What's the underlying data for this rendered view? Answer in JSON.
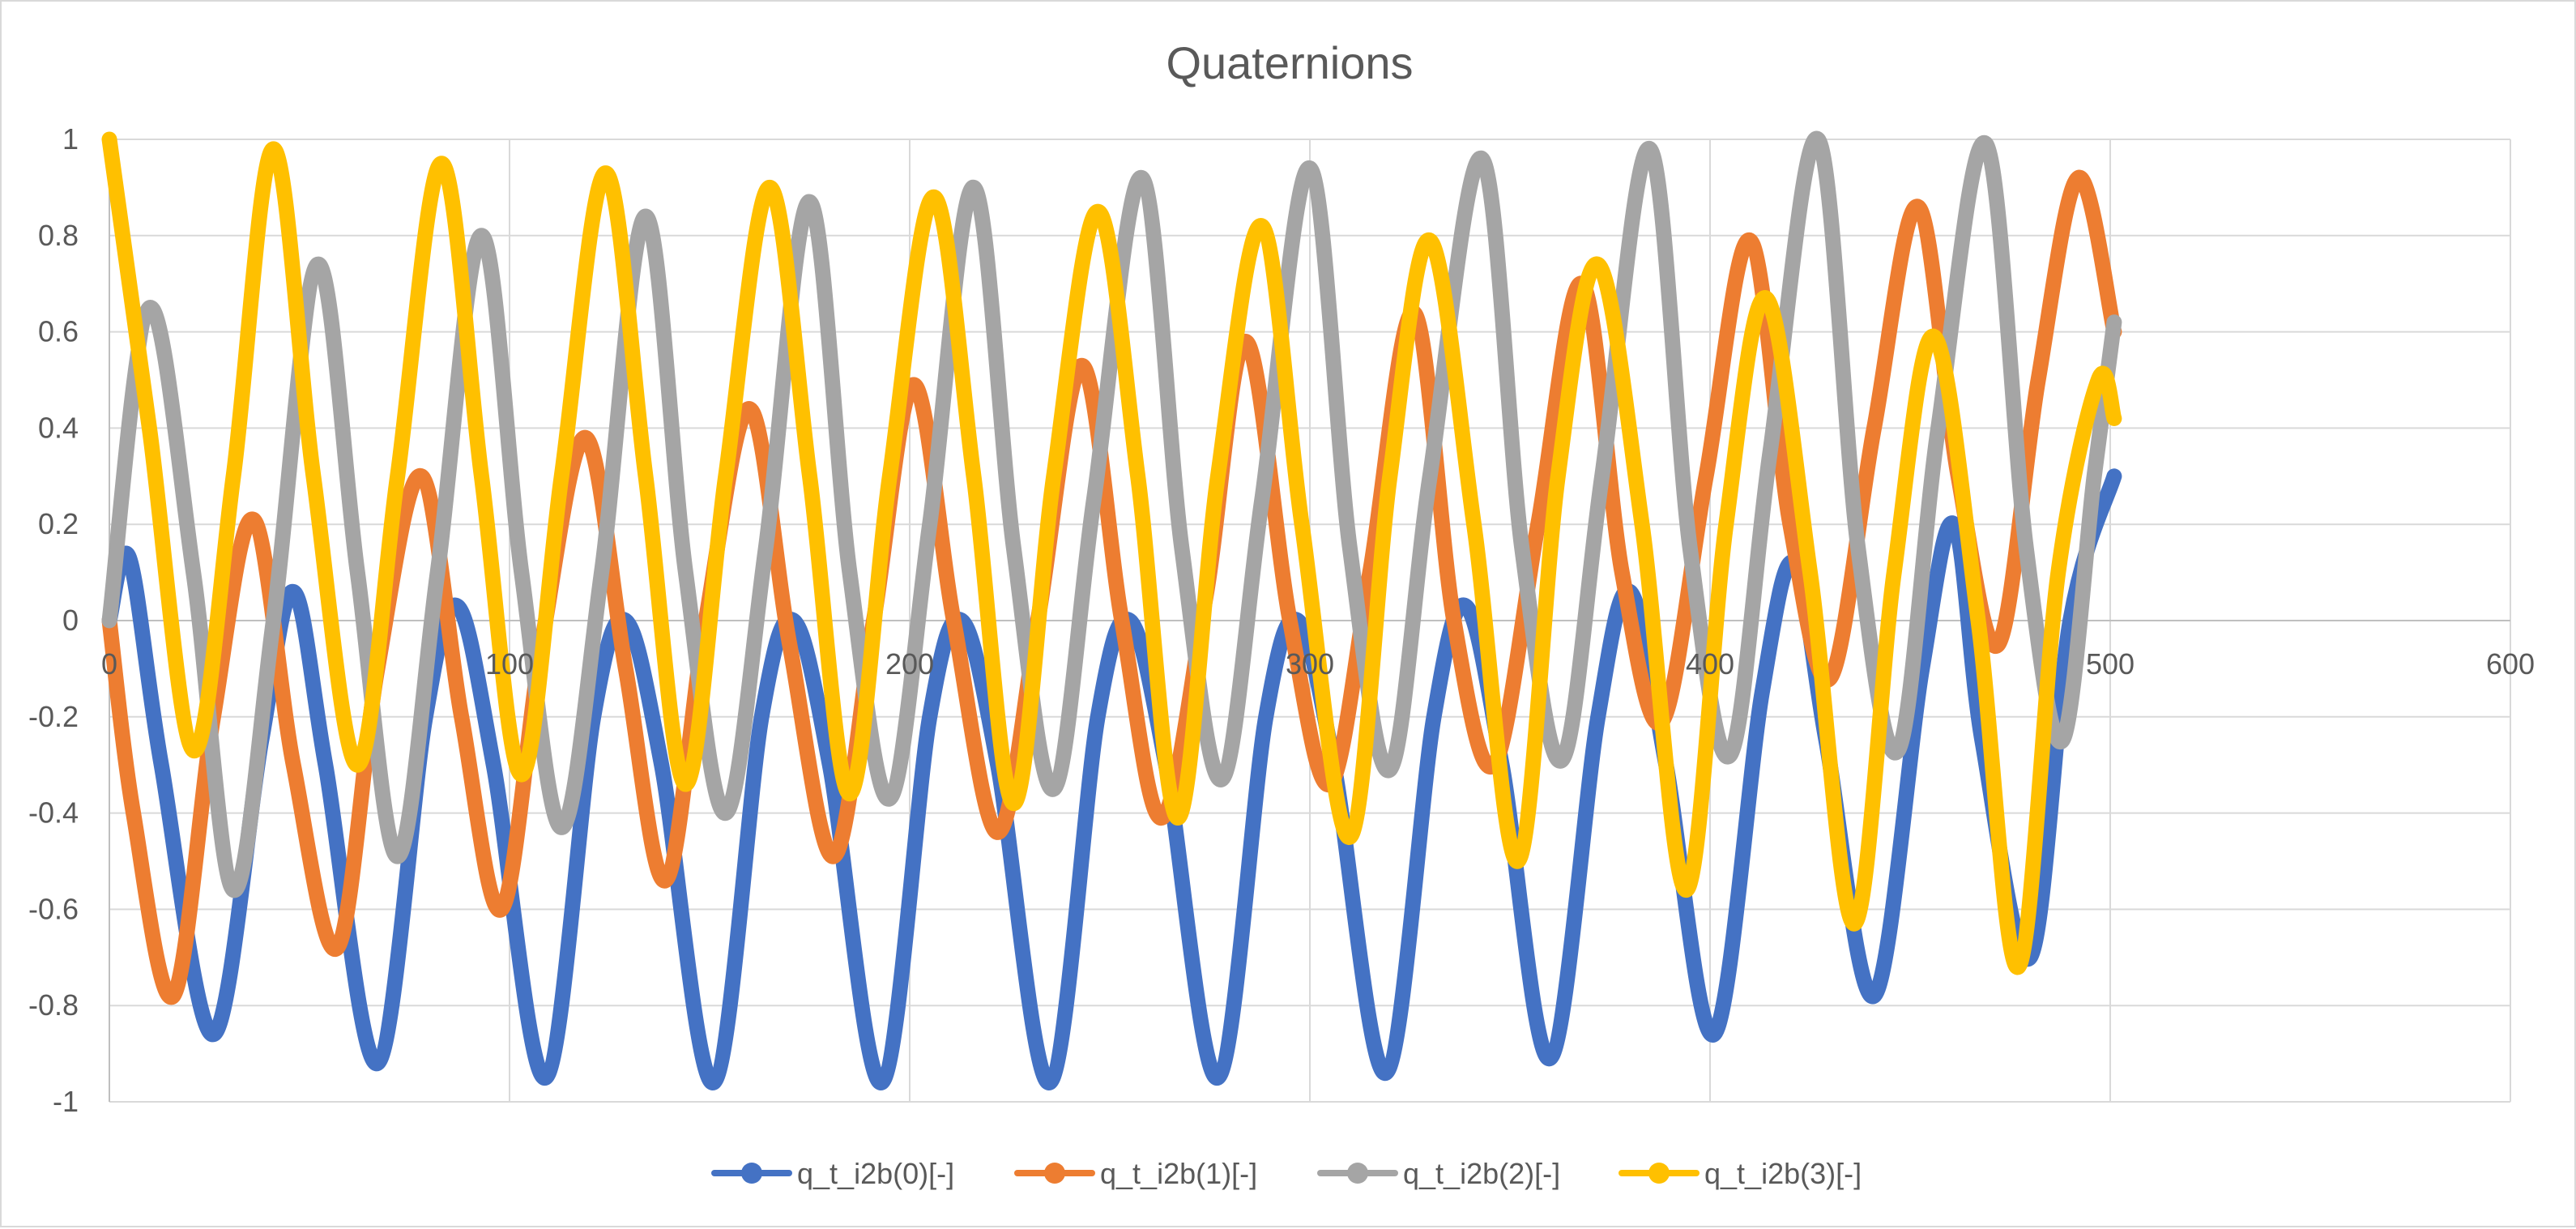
{
  "chart_data": {
    "type": "line",
    "title": "Quaternions",
    "xlabel": "",
    "ylabel": "",
    "xlim": [
      0,
      600
    ],
    "ylim": [
      -1,
      1
    ],
    "x_ticks": [
      "0",
      "100",
      "200",
      "300",
      "400",
      "500",
      "600"
    ],
    "y_ticks": [
      "1",
      "0.8",
      "0.6",
      "0.4",
      "0.2",
      "0",
      "-0.2",
      "-0.4",
      "-0.6",
      "-0.8",
      "-1"
    ],
    "grid": true,
    "legend_position": "bottom",
    "x_range_of_data": [
      0,
      501
    ],
    "series": [
      {
        "name": "q_t_i2b(0)[-]",
        "color": "#4472c4",
        "points": [
          [
            0,
            0
          ],
          [
            5,
            0.13
          ],
          [
            13,
            -0.3
          ],
          [
            26,
            -0.86
          ],
          [
            38,
            -0.25
          ],
          [
            46,
            0.06
          ],
          [
            54,
            -0.3
          ],
          [
            67,
            -0.92
          ],
          [
            79,
            -0.2
          ],
          [
            87,
            0.03
          ],
          [
            96,
            -0.3
          ],
          [
            109,
            -0.95
          ],
          [
            121,
            -0.2
          ],
          [
            129,
            0.0
          ],
          [
            138,
            -0.3
          ],
          [
            151,
            -0.96
          ],
          [
            163,
            -0.2
          ],
          [
            171,
            0.0
          ],
          [
            180,
            -0.3
          ],
          [
            193,
            -0.96
          ],
          [
            205,
            -0.2
          ],
          [
            213,
            0.0
          ],
          [
            222,
            -0.3
          ],
          [
            235,
            -0.96
          ],
          [
            247,
            -0.2
          ],
          [
            255,
            0.0
          ],
          [
            264,
            -0.3
          ],
          [
            277,
            -0.95
          ],
          [
            289,
            -0.2
          ],
          [
            297,
            0.0
          ],
          [
            306,
            -0.3
          ],
          [
            319,
            -0.94
          ],
          [
            331,
            -0.2
          ],
          [
            339,
            0.03
          ],
          [
            348,
            -0.3
          ],
          [
            360,
            -0.91
          ],
          [
            372,
            -0.2
          ],
          [
            380,
            0.06
          ],
          [
            389,
            -0.3
          ],
          [
            401,
            -0.86
          ],
          [
            413,
            -0.15
          ],
          [
            421,
            0.12
          ],
          [
            429,
            -0.25
          ],
          [
            441,
            -0.78
          ],
          [
            453,
            -0.1
          ],
          [
            461,
            0.2
          ],
          [
            468,
            -0.25
          ],
          [
            480,
            -0.7
          ],
          [
            490,
            0.0
          ],
          [
            501,
            0.3
          ]
        ]
      },
      {
        "name": "q_t_i2b(1)[-]",
        "color": "#ed7d31",
        "points": [
          [
            0,
            0
          ],
          [
            6,
            -0.4
          ],
          [
            16,
            -0.78
          ],
          [
            26,
            -0.2
          ],
          [
            36,
            0.21
          ],
          [
            46,
            -0.3
          ],
          [
            57,
            -0.68
          ],
          [
            67,
            -0.1
          ],
          [
            78,
            0.3
          ],
          [
            88,
            -0.2
          ],
          [
            98,
            -0.6
          ],
          [
            108,
            -0.05
          ],
          [
            119,
            0.38
          ],
          [
            129,
            -0.1
          ],
          [
            139,
            -0.54
          ],
          [
            149,
            0.0
          ],
          [
            160,
            0.44
          ],
          [
            170,
            -0.05
          ],
          [
            181,
            -0.49
          ],
          [
            191,
            0.0
          ],
          [
            201,
            0.49
          ],
          [
            211,
            0.0
          ],
          [
            222,
            -0.44
          ],
          [
            232,
            0.0
          ],
          [
            243,
            0.53
          ],
          [
            253,
            0.0
          ],
          [
            263,
            -0.41
          ],
          [
            274,
            0.05
          ],
          [
            284,
            0.58
          ],
          [
            295,
            0.0
          ],
          [
            305,
            -0.34
          ],
          [
            315,
            0.1
          ],
          [
            326,
            0.64
          ],
          [
            336,
            0.0
          ],
          [
            346,
            -0.3
          ],
          [
            357,
            0.2
          ],
          [
            368,
            0.7
          ],
          [
            378,
            0.1
          ],
          [
            388,
            -0.21
          ],
          [
            399,
            0.3
          ],
          [
            410,
            0.79
          ],
          [
            420,
            0.2
          ],
          [
            430,
            -0.12
          ],
          [
            441,
            0.4
          ],
          [
            452,
            0.86
          ],
          [
            462,
            0.3
          ],
          [
            472,
            -0.05
          ],
          [
            482,
            0.5
          ],
          [
            492,
            0.92
          ],
          [
            501,
            0.6
          ]
        ]
      },
      {
        "name": "q_t_i2b(2)[-]",
        "color": "#a5a5a5",
        "points": [
          [
            0,
            0
          ],
          [
            10,
            0.65
          ],
          [
            21,
            0.1
          ],
          [
            31,
            -0.56
          ],
          [
            41,
            0.0
          ],
          [
            52,
            0.74
          ],
          [
            62,
            0.1
          ],
          [
            72,
            -0.49
          ],
          [
            82,
            0.1
          ],
          [
            93,
            0.8
          ],
          [
            103,
            0.1
          ],
          [
            113,
            -0.43
          ],
          [
            123,
            0.1
          ],
          [
            134,
            0.84
          ],
          [
            144,
            0.1
          ],
          [
            154,
            -0.4
          ],
          [
            164,
            0.15
          ],
          [
            175,
            0.87
          ],
          [
            185,
            0.1
          ],
          [
            195,
            -0.37
          ],
          [
            205,
            0.2
          ],
          [
            216,
            0.9
          ],
          [
            226,
            0.15
          ],
          [
            236,
            -0.35
          ],
          [
            246,
            0.25
          ],
          [
            258,
            0.92
          ],
          [
            268,
            0.15
          ],
          [
            278,
            -0.33
          ],
          [
            288,
            0.25
          ],
          [
            300,
            0.94
          ],
          [
            310,
            0.15
          ],
          [
            320,
            -0.31
          ],
          [
            330,
            0.3
          ],
          [
            343,
            0.96
          ],
          [
            353,
            0.15
          ],
          [
            363,
            -0.29
          ],
          [
            373,
            0.3
          ],
          [
            385,
            0.98
          ],
          [
            395,
            0.15
          ],
          [
            405,
            -0.28
          ],
          [
            415,
            0.35
          ],
          [
            427,
            1.0
          ],
          [
            437,
            0.15
          ],
          [
            447,
            -0.27
          ],
          [
            457,
            0.4
          ],
          [
            469,
            0.99
          ],
          [
            479,
            0.15
          ],
          [
            488,
            -0.25
          ],
          [
            496,
            0.3
          ],
          [
            501,
            0.62
          ]
        ]
      },
      {
        "name": "q_t_i2b(3)[-]",
        "color": "#ffc000",
        "points": [
          [
            0,
            1
          ],
          [
            10,
            0.4
          ],
          [
            21,
            -0.27
          ],
          [
            31,
            0.3
          ],
          [
            41,
            0.98
          ],
          [
            51,
            0.3
          ],
          [
            62,
            -0.3
          ],
          [
            72,
            0.3
          ],
          [
            83,
            0.95
          ],
          [
            93,
            0.3
          ],
          [
            103,
            -0.32
          ],
          [
            113,
            0.3
          ],
          [
            124,
            0.93
          ],
          [
            134,
            0.3
          ],
          [
            144,
            -0.34
          ],
          [
            154,
            0.3
          ],
          [
            165,
            0.9
          ],
          [
            175,
            0.3
          ],
          [
            185,
            -0.36
          ],
          [
            195,
            0.3
          ],
          [
            206,
            0.88
          ],
          [
            216,
            0.3
          ],
          [
            226,
            -0.38
          ],
          [
            236,
            0.3
          ],
          [
            247,
            0.85
          ],
          [
            257,
            0.3
          ],
          [
            267,
            -0.41
          ],
          [
            277,
            0.3
          ],
          [
            288,
            0.82
          ],
          [
            298,
            0.2
          ],
          [
            310,
            -0.45
          ],
          [
            320,
            0.3
          ],
          [
            330,
            0.79
          ],
          [
            341,
            0.2
          ],
          [
            352,
            -0.5
          ],
          [
            362,
            0.3
          ],
          [
            372,
            0.74
          ],
          [
            383,
            0.2
          ],
          [
            394,
            -0.56
          ],
          [
            404,
            0.2
          ],
          [
            414,
            0.67
          ],
          [
            425,
            0.1
          ],
          [
            436,
            -0.63
          ],
          [
            446,
            0.1
          ],
          [
            456,
            0.59
          ],
          [
            467,
            0.0
          ],
          [
            477,
            -0.72
          ],
          [
            487,
            0.1
          ],
          [
            497,
            0.5
          ],
          [
            501,
            0.42
          ]
        ]
      }
    ]
  }
}
